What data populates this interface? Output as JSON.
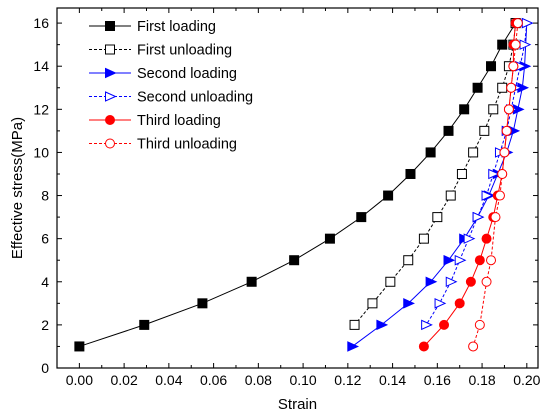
{
  "chart_data": {
    "type": "line",
    "title": "",
    "xlabel": "Strain",
    "ylabel": "Effective stress(MPa)",
    "xlim": [
      -0.01,
      0.205
    ],
    "ylim": [
      0,
      16.7
    ],
    "x_ticks": [
      0.0,
      0.02,
      0.04,
      0.06,
      0.08,
      0.1,
      0.12,
      0.14,
      0.16,
      0.18,
      0.2
    ],
    "x_tick_labels": [
      "0.00",
      "0.02",
      "0.04",
      "0.06",
      "0.08",
      "0.10",
      "0.12",
      "0.14",
      "0.16",
      "0.18",
      "0.20"
    ],
    "y_ticks": [
      0,
      2,
      4,
      6,
      8,
      10,
      12,
      14,
      16
    ],
    "y_tick_labels": [
      "0",
      "2",
      "4",
      "6",
      "8",
      "10",
      "12",
      "14",
      "16"
    ],
    "grid": false,
    "legend_position": "top-left",
    "series": [
      {
        "name": "First loading",
        "color": "#000000",
        "marker": "square-filled",
        "line": "solid",
        "x": [
          0.0,
          0.029,
          0.055,
          0.077,
          0.096,
          0.112,
          0.126,
          0.138,
          0.148,
          0.157,
          0.165,
          0.172,
          0.178,
          0.184,
          0.189,
          0.195
        ],
        "y": [
          1,
          2,
          3,
          4,
          5,
          6,
          7,
          8,
          9,
          10,
          11,
          12,
          13,
          14,
          15,
          16
        ]
      },
      {
        "name": "First unloading",
        "color": "#000000",
        "marker": "square-open",
        "line": "dash",
        "x": [
          0.195,
          0.194,
          0.192,
          0.189,
          0.185,
          0.181,
          0.176,
          0.171,
          0.166,
          0.16,
          0.154,
          0.147,
          0.139,
          0.131,
          0.123
        ],
        "y": [
          16,
          15,
          14,
          13,
          12,
          11,
          10,
          9,
          8,
          7,
          6,
          5,
          4,
          3,
          2
        ]
      },
      {
        "name": "Second loading",
        "color": "#0000ff",
        "marker": "triangle-right-filled",
        "line": "solid",
        "x": [
          0.122,
          0.135,
          0.147,
          0.157,
          0.165,
          0.172,
          0.178,
          0.183,
          0.187,
          0.191,
          0.194,
          0.196,
          0.198,
          0.199,
          0.2
        ],
        "y": [
          1,
          2,
          3,
          4,
          5,
          6,
          7,
          8,
          9,
          10,
          11,
          12,
          13,
          14,
          16
        ]
      },
      {
        "name": "Second unloading",
        "color": "#0000ff",
        "marker": "triangle-right-open",
        "line": "dash",
        "x": [
          0.2,
          0.199,
          0.197,
          0.195,
          0.193,
          0.191,
          0.188,
          0.185,
          0.182,
          0.178,
          0.174,
          0.17,
          0.166,
          0.161,
          0.155
        ],
        "y": [
          16,
          15,
          14,
          13,
          12,
          11,
          10,
          9,
          8,
          7,
          6,
          5,
          4,
          3,
          2
        ]
      },
      {
        "name": "Third loading",
        "color": "#ff0000",
        "marker": "circle-filled",
        "line": "solid",
        "x": [
          0.154,
          0.163,
          0.17,
          0.175,
          0.179,
          0.182,
          0.185,
          0.187,
          0.189,
          0.19,
          0.191,
          0.192,
          0.193,
          0.194,
          0.194,
          0.195
        ],
        "y": [
          1,
          2,
          3,
          4,
          5,
          6,
          7,
          8,
          9,
          10,
          11,
          12,
          13,
          14,
          15,
          16
        ]
      },
      {
        "name": "Third unloading",
        "color": "#ff0000",
        "marker": "circle-open",
        "line": "dash",
        "x": [
          0.196,
          0.195,
          0.194,
          0.193,
          0.192,
          0.191,
          0.19,
          0.189,
          0.188,
          0.186,
          0.184,
          0.182,
          0.179,
          0.176
        ],
        "y": [
          16,
          15,
          14,
          13,
          12,
          11,
          10,
          9,
          8,
          7,
          5,
          4,
          2,
          1
        ]
      }
    ]
  }
}
